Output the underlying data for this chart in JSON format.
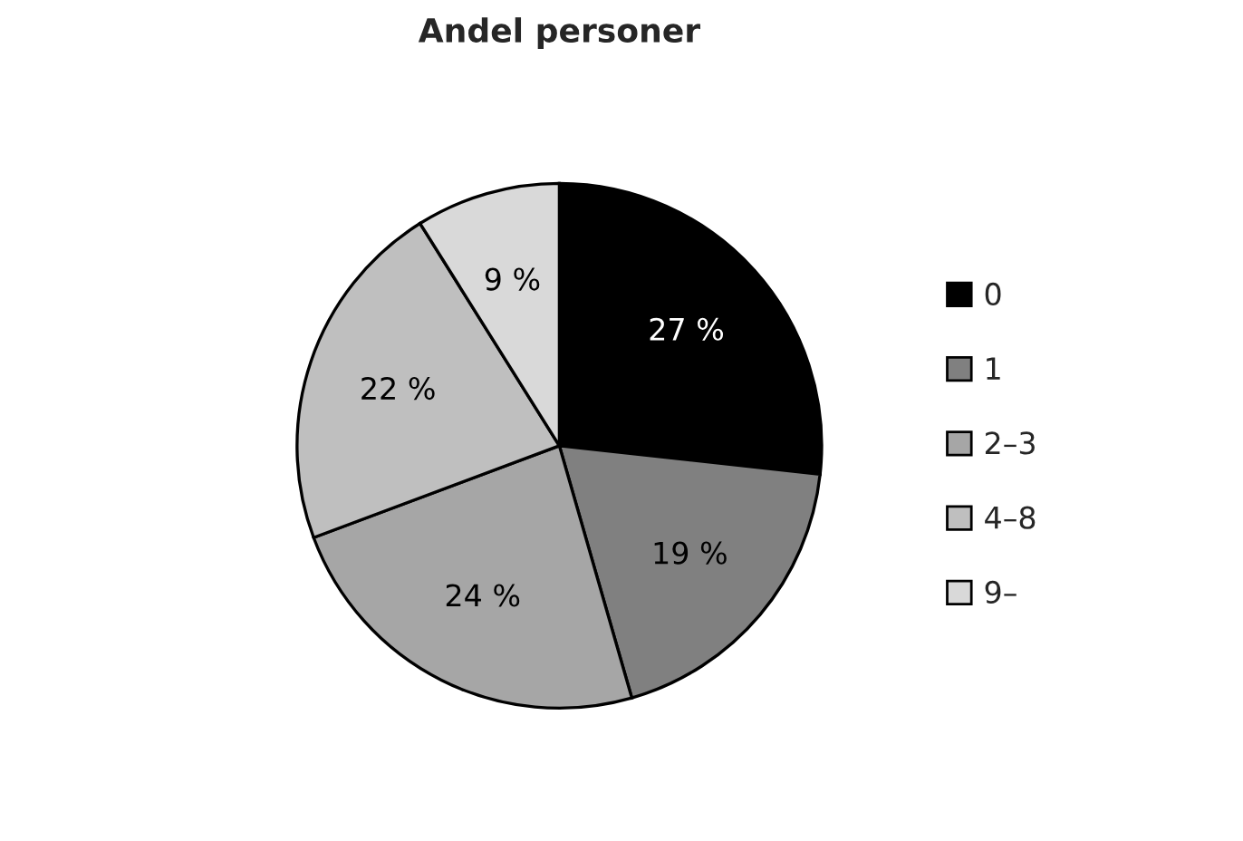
{
  "chart_data": {
    "type": "pie",
    "title": "Andel personer",
    "categories": [
      "0",
      "1",
      "2–3",
      "4–8",
      "9–"
    ],
    "values": [
      27,
      19,
      24,
      22,
      9
    ],
    "colors": [
      "#000000",
      "#808080",
      "#a6a6a6",
      "#bfbfbf",
      "#d9d9d9"
    ],
    "value_labels": [
      "27 %",
      "19 %",
      "24 %",
      "22 %",
      "9 %"
    ],
    "legend": "right"
  }
}
